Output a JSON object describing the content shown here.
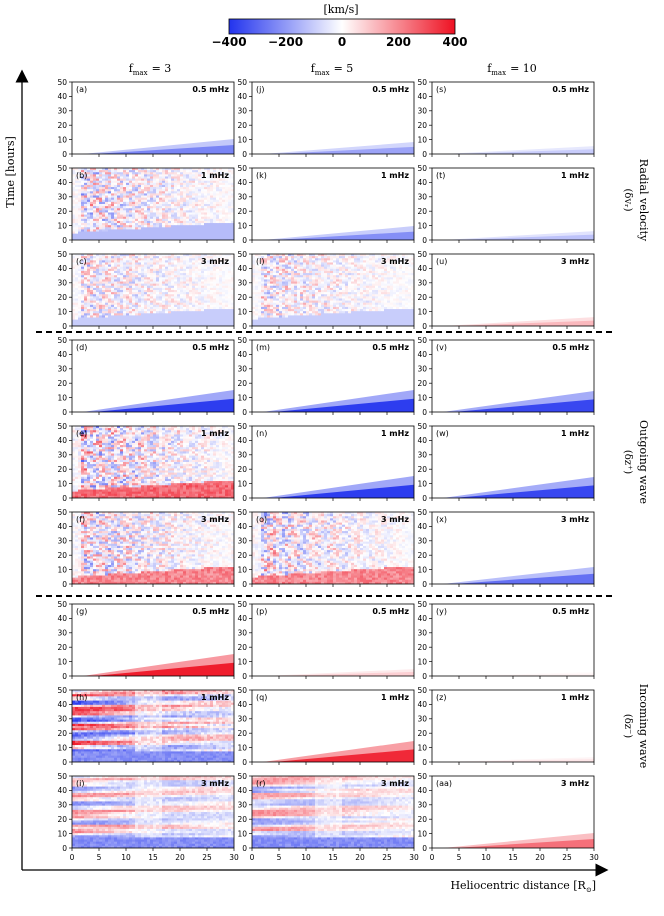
{
  "colorbar": {
    "unit": "[km/s]",
    "ticks": [
      "−400",
      "−200",
      "0",
      "200",
      "400"
    ],
    "min": -400,
    "max": 400,
    "colors": {
      "neg": "#2233ee",
      "mid": "#ffffff",
      "pos": "#ee1122"
    }
  },
  "column_headers": [
    "f",
    "f",
    "f"
  ],
  "column_header_sub": [
    "max",
    "max",
    "max"
  ],
  "column_header_values": [
    "= 3",
    "= 5",
    "= 10"
  ],
  "ylabel": "Time [hours]",
  "xlabel": "Heliocentric distance [R",
  "xlabel_sub": "⊙",
  "xlabel_close": "]",
  "groups": [
    {
      "title": "Radial velocity",
      "symbol": "(δvᵣ)"
    },
    {
      "title": "Outgoing wave",
      "symbol": "(δz⁺)"
    },
    {
      "title": "Incoming wave",
      "symbol": "(δz⁻)"
    }
  ],
  "chart_data": {
    "type": "heatmap",
    "grid": "3x3 groups of 3 frequency rows by 3 f_max columns",
    "x": {
      "label": "Heliocentric distance [R⊙]",
      "range": [
        0,
        30
      ],
      "ticks": [
        "0",
        "5",
        "10",
        "15",
        "20",
        "25",
        "30"
      ]
    },
    "y": {
      "label": "Time [hours]",
      "range": [
        0,
        50
      ],
      "ticks": [
        "0",
        "10",
        "20",
        "30",
        "40",
        "50"
      ]
    },
    "colorscale": {
      "range": [
        -400,
        400
      ],
      "unit": "km/s"
    },
    "panels": [
      {
        "id": "(a)",
        "freq": "0.5 mHz",
        "col": 0,
        "row": 0,
        "style": "quiet",
        "sign": -1,
        "amp": 0.6
      },
      {
        "id": "(b)",
        "freq": "1 mHz",
        "col": 0,
        "row": 1,
        "style": "turb",
        "sign": 0,
        "amp": 0.6
      },
      {
        "id": "(c)",
        "freq": "3 mHz",
        "col": 0,
        "row": 2,
        "style": "turb",
        "sign": 0,
        "amp": 0.45
      },
      {
        "id": "(d)",
        "freq": "0.5 mHz",
        "col": 0,
        "row": 3,
        "style": "quiet",
        "sign": -1,
        "amp": 0.95
      },
      {
        "id": "(e)",
        "freq": "1 mHz",
        "col": 0,
        "row": 4,
        "style": "turb",
        "sign": 1,
        "amp": 0.75
      },
      {
        "id": "(f)",
        "freq": "3 mHz",
        "col": 0,
        "row": 5,
        "style": "turb",
        "sign": 1,
        "amp": 0.6
      },
      {
        "id": "(g)",
        "freq": "0.5 mHz",
        "col": 0,
        "row": 6,
        "style": "quiet",
        "sign": 1,
        "amp": 0.95
      },
      {
        "id": "(h)",
        "freq": "1 mHz",
        "col": 0,
        "row": 7,
        "style": "incoming",
        "sign": 0,
        "amp": 0.85
      },
      {
        "id": "(i)",
        "freq": "3 mHz",
        "col": 0,
        "row": 8,
        "style": "incoming",
        "sign": 0,
        "amp": 0.55
      },
      {
        "id": "(j)",
        "freq": "0.5 mHz",
        "col": 1,
        "row": 0,
        "style": "quiet",
        "sign": -1,
        "amp": 0.45
      },
      {
        "id": "(k)",
        "freq": "1 mHz",
        "col": 1,
        "row": 1,
        "style": "quiet",
        "sign": -1,
        "amp": 0.55
      },
      {
        "id": "(l)",
        "freq": "3 mHz",
        "col": 1,
        "row": 2,
        "style": "turb",
        "sign": 0,
        "amp": 0.45
      },
      {
        "id": "(m)",
        "freq": "0.5 mHz",
        "col": 1,
        "row": 3,
        "style": "quiet",
        "sign": -1,
        "amp": 0.95
      },
      {
        "id": "(n)",
        "freq": "1 mHz",
        "col": 1,
        "row": 4,
        "style": "quiet",
        "sign": -1,
        "amp": 0.95
      },
      {
        "id": "(o)",
        "freq": "3 mHz",
        "col": 1,
        "row": 5,
        "style": "turb",
        "sign": 1,
        "amp": 0.6
      },
      {
        "id": "(p)",
        "freq": "0.5 mHz",
        "col": 1,
        "row": 6,
        "style": "quiet",
        "sign": 1,
        "amp": 0.2
      },
      {
        "id": "(q)",
        "freq": "1 mHz",
        "col": 1,
        "row": 7,
        "style": "quiet",
        "sign": 1,
        "amp": 0.9
      },
      {
        "id": "(r)",
        "freq": "3 mHz",
        "col": 1,
        "row": 8,
        "style": "incoming",
        "sign": 0,
        "amp": 0.5
      },
      {
        "id": "(s)",
        "freq": "0.5 mHz",
        "col": 2,
        "row": 0,
        "style": "quiet",
        "sign": -1,
        "amp": 0.25
      },
      {
        "id": "(t)",
        "freq": "1 mHz",
        "col": 2,
        "row": 1,
        "style": "quiet",
        "sign": -1,
        "amp": 0.3
      },
      {
        "id": "(u)",
        "freq": "3 mHz",
        "col": 2,
        "row": 2,
        "style": "quiet",
        "sign": 1,
        "amp": 0.3
      },
      {
        "id": "(v)",
        "freq": "0.5 mHz",
        "col": 2,
        "row": 3,
        "style": "quiet",
        "sign": -1,
        "amp": 0.9
      },
      {
        "id": "(w)",
        "freq": "1 mHz",
        "col": 2,
        "row": 4,
        "style": "quiet",
        "sign": -1,
        "amp": 0.9
      },
      {
        "id": "(x)",
        "freq": "3 mHz",
        "col": 2,
        "row": 5,
        "style": "quiet",
        "sign": -1,
        "amp": 0.7
      },
      {
        "id": "(y)",
        "freq": "0.5 mHz",
        "col": 2,
        "row": 6,
        "style": "quiet",
        "sign": 1,
        "amp": 0.05
      },
      {
        "id": "(z)",
        "freq": "1 mHz",
        "col": 2,
        "row": 7,
        "style": "quiet",
        "sign": 1,
        "amp": 0.1
      },
      {
        "id": "(aa)",
        "freq": "3 mHz",
        "col": 2,
        "row": 8,
        "style": "quiet",
        "sign": 1,
        "amp": 0.6
      }
    ]
  }
}
